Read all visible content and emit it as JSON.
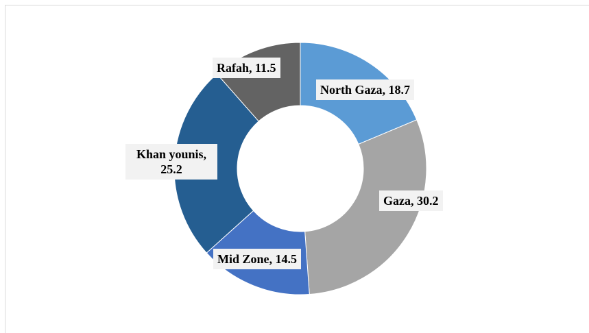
{
  "chart_data": {
    "type": "pie",
    "donut": true,
    "title": "",
    "slices": [
      {
        "label": "North Gaza",
        "value": 18.7,
        "color": "#5b9bd5",
        "label_text": "North Gaza, 18.7"
      },
      {
        "label": "Gaza",
        "value": 30.2,
        "color": "#a5a5a5",
        "label_text": "Gaza, 30.2"
      },
      {
        "label": "Mid Zone",
        "value": 14.5,
        "color": "#4472c4",
        "label_text": "Mid Zone, 14.5"
      },
      {
        "label": "Khan younis",
        "value": 25.2,
        "color": "#255e91",
        "label_text": "Khan younis,\n25.2"
      },
      {
        "label": "Rafah",
        "value": 11.5,
        "color": "#636363",
        "label_text": "Rafah, 11.5"
      }
    ]
  }
}
